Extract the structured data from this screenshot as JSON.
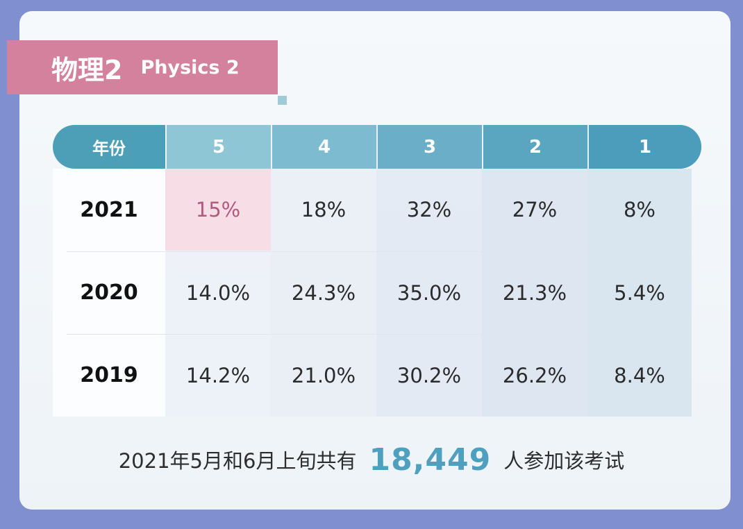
{
  "title": {
    "zh": "物理2",
    "en": "Physics 2"
  },
  "chart_data": {
    "type": "table",
    "columns": [
      "年份",
      "5",
      "4",
      "3",
      "2",
      "1"
    ],
    "rows": [
      {
        "year": "2021",
        "values": [
          "15%",
          "18%",
          "32%",
          "27%",
          "8%"
        ]
      },
      {
        "year": "2020",
        "values": [
          "14.0%",
          "24.3%",
          "35.0%",
          "21.3%",
          "5.4%"
        ]
      },
      {
        "year": "2019",
        "values": [
          "14.2%",
          "21.0%",
          "30.2%",
          "26.2%",
          "8.4%"
        ]
      }
    ],
    "highlight_color": "#d3819c",
    "header_color": "#4d9fb7"
  },
  "footer": {
    "prefix": "2021年5月和6月上旬共有",
    "count": "18,449",
    "suffix": "人参加该考试"
  }
}
